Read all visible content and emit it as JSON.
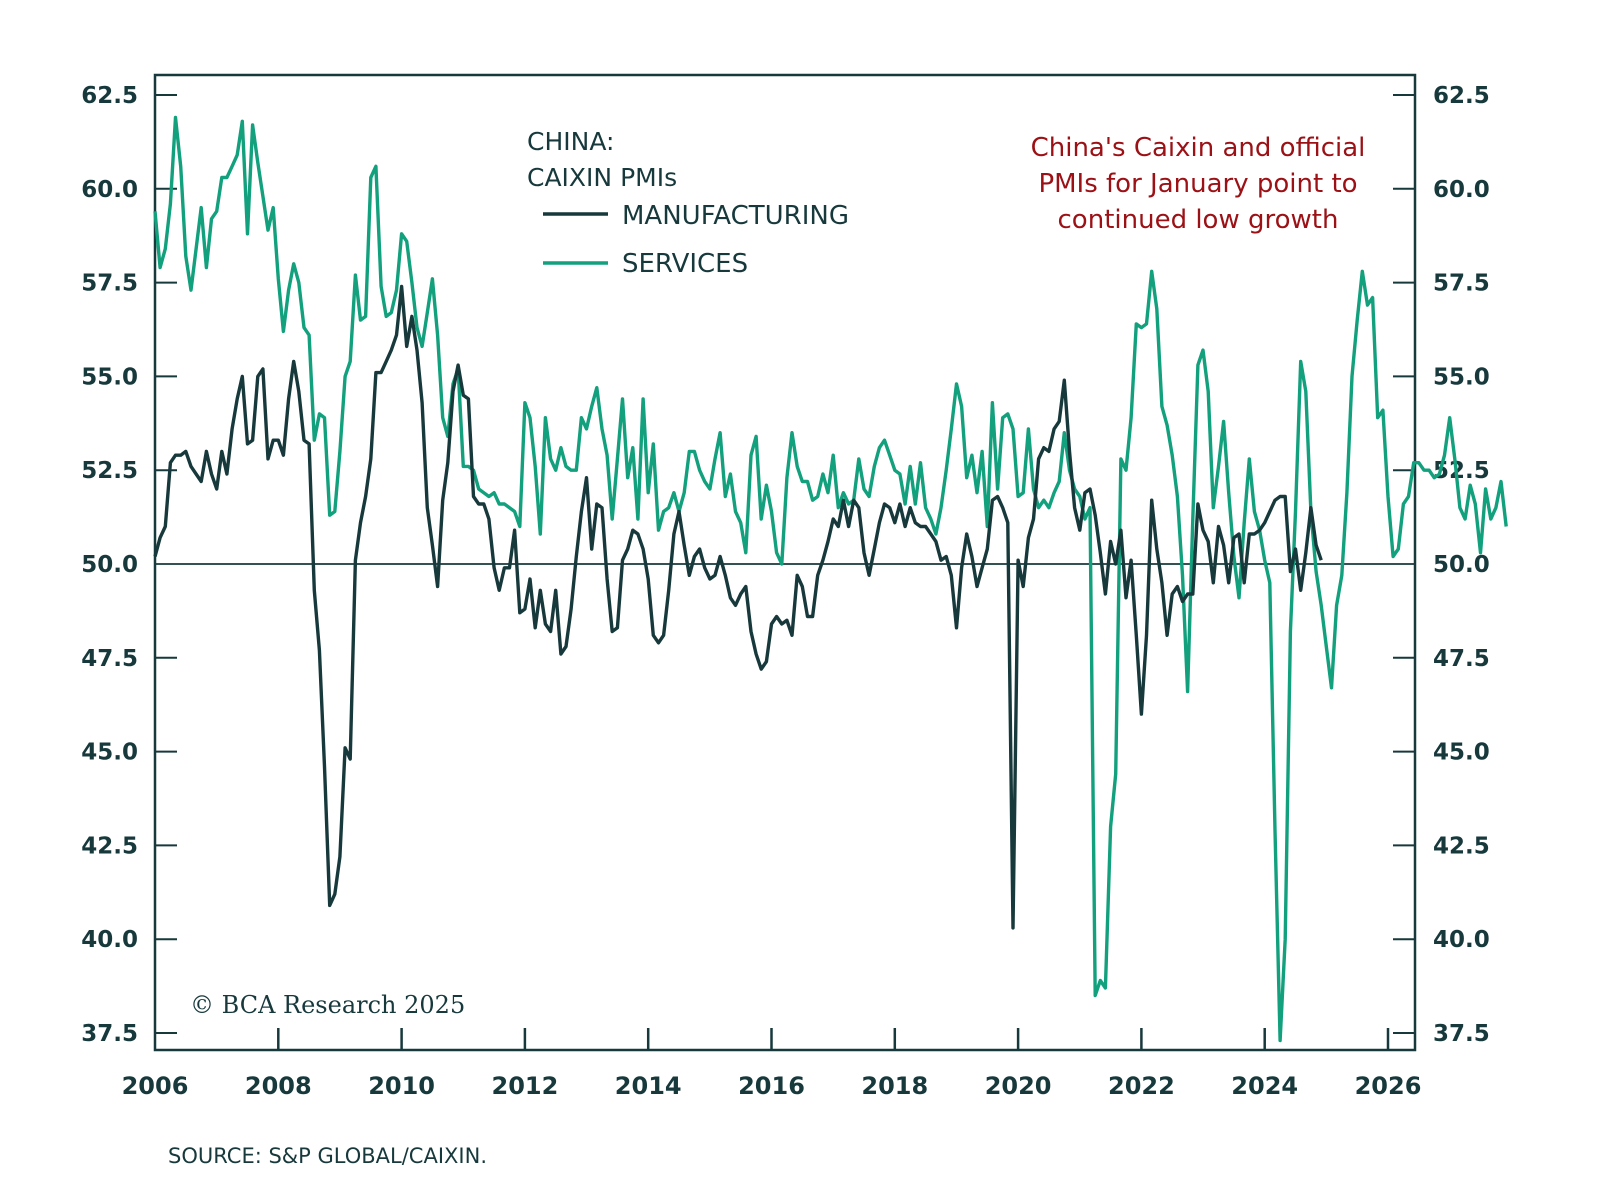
{
  "chart_data": {
    "type": "line",
    "title": "CHINA: CAIXIN PMIs",
    "title_lines": [
      "CHINA:",
      "CAIXIN PMIs"
    ],
    "xlabel": "",
    "ylabel": "",
    "x_start": "2006-01",
    "x_frequency": "monthly",
    "xlim": [
      2006,
      2026
    ],
    "ylim": [
      37.0,
      63.2
    ],
    "x_ticks": [
      2006,
      2008,
      2010,
      2012,
      2014,
      2016,
      2018,
      2020,
      2022,
      2024,
      2026
    ],
    "x_tick_labels": [
      "2006",
      "2008",
      "2010",
      "2012",
      "2014",
      "2016",
      "2018",
      "2020",
      "2022",
      "2024",
      "2026"
    ],
    "y_ticks": [
      37.5,
      40.0,
      42.5,
      45.0,
      47.5,
      50.0,
      52.5,
      55.0,
      57.5,
      60.0,
      62.5
    ],
    "y_tick_labels": [
      "37.5",
      "40.0",
      "42.5",
      "45.0",
      "47.5",
      "50.0",
      "52.5",
      "55.0",
      "57.5",
      "60.0",
      "62.5"
    ],
    "reference_line": 50.0,
    "grid": false,
    "legend_position": "top-center",
    "annotation": [
      "China's Caixin and official",
      "PMIs for January point to",
      "continued low growth"
    ],
    "copyright": "© BCA Research 2025",
    "source": "SOURCE: S&P GLOBAL/CAIXIN.",
    "series": [
      {
        "name": "MANUFACTURING",
        "color": "#17393c",
        "values": [
          50.2,
          50.7,
          51.0,
          52.7,
          52.9,
          52.9,
          53.0,
          52.6,
          52.4,
          52.2,
          53.0,
          52.4,
          52.0,
          53.0,
          52.4,
          53.6,
          54.4,
          55.0,
          53.2,
          53.3,
          55.0,
          55.2,
          52.8,
          53.3,
          53.3,
          52.9,
          54.4,
          55.4,
          54.6,
          53.3,
          53.2,
          49.3,
          47.7,
          44.6,
          40.9,
          41.2,
          42.2,
          45.1,
          44.8,
          50.1,
          51.1,
          51.8,
          52.8,
          55.1,
          55.1,
          55.4,
          55.7,
          56.1,
          57.4,
          55.8,
          56.6,
          55.7,
          54.3,
          51.5,
          50.5,
          49.4,
          51.7,
          52.7,
          54.6,
          55.3,
          54.5,
          54.4,
          51.8,
          51.6,
          51.6,
          51.2,
          49.9,
          49.3,
          49.9,
          49.9,
          50.9,
          48.7,
          48.8,
          49.6,
          48.3,
          49.3,
          48.4,
          48.2,
          49.3,
          47.6,
          47.8,
          48.8,
          50.2,
          51.4,
          52.3,
          50.4,
          51.6,
          51.5,
          49.6,
          48.2,
          48.3,
          50.1,
          50.4,
          50.9,
          50.8,
          50.4,
          49.6,
          48.1,
          47.9,
          48.1,
          49.3,
          50.8,
          51.4,
          50.5,
          49.7,
          50.2,
          50.4,
          49.9,
          49.6,
          49.7,
          50.2,
          49.7,
          49.1,
          48.9,
          49.2,
          49.4,
          48.2,
          47.6,
          47.2,
          47.4,
          48.4,
          48.6,
          48.4,
          48.5,
          48.1,
          49.7,
          49.4,
          48.6,
          48.6,
          49.7,
          50.1,
          50.6,
          51.2,
          51.0,
          51.7,
          51.0,
          51.7,
          51.5,
          50.3,
          49.7,
          50.4,
          51.1,
          51.6,
          51.5,
          51.1,
          51.6,
          51.0,
          51.5,
          51.1,
          51.0,
          51.0,
          50.8,
          50.6,
          50.1,
          50.2,
          49.7,
          48.3,
          49.9,
          50.8,
          50.2,
          49.4,
          49.9,
          50.4,
          51.7,
          51.8,
          51.5,
          51.1,
          40.3,
          50.1,
          49.4,
          50.7,
          51.2,
          52.8,
          53.1,
          53.0,
          53.6,
          53.8,
          54.9,
          53.0,
          51.5,
          50.9,
          51.9,
          52.0,
          51.3,
          50.3,
          49.2,
          50.6,
          50.0,
          50.9,
          49.1,
          50.1,
          48.1,
          46.0,
          48.1,
          51.7,
          50.4,
          49.5,
          48.1,
          49.2,
          49.4,
          49.0,
          49.2,
          49.2,
          51.6,
          50.9,
          50.6,
          49.5,
          51.0,
          50.5,
          49.5,
          50.7,
          50.8,
          49.5,
          50.8,
          50.8,
          50.9,
          51.1,
          51.4,
          51.7,
          51.8,
          51.8,
          49.8,
          50.4,
          49.3,
          50.3,
          51.5,
          50.5,
          50.1
        ]
      },
      {
        "name": "SERVICES",
        "color": "#12a07d",
        "values": [
          59.4,
          57.9,
          58.4,
          59.6,
          61.9,
          60.6,
          58.2,
          57.3,
          58.4,
          59.5,
          57.9,
          59.2,
          59.4,
          60.3,
          60.3,
          60.6,
          60.9,
          61.8,
          58.8,
          61.7,
          60.7,
          59.8,
          58.9,
          59.5,
          57.6,
          56.2,
          57.3,
          58.0,
          57.5,
          56.3,
          56.1,
          53.3,
          54.0,
          53.9,
          51.3,
          51.4,
          53.0,
          55.0,
          55.4,
          57.7,
          56.5,
          56.6,
          60.3,
          60.6,
          57.4,
          56.6,
          56.7,
          57.3,
          58.8,
          58.6,
          57.5,
          56.3,
          55.8,
          56.7,
          57.6,
          56.1,
          53.9,
          53.4,
          54.8,
          55.2,
          52.6,
          52.6,
          52.5,
          52.0,
          51.9,
          51.8,
          51.9,
          51.6,
          51.6,
          51.5,
          51.4,
          51.0,
          54.3,
          53.9,
          52.6,
          50.8,
          53.9,
          52.8,
          52.5,
          53.1,
          52.6,
          52.5,
          52.5,
          53.9,
          53.6,
          54.2,
          54.7,
          53.6,
          52.9,
          51.2,
          52.8,
          54.4,
          52.3,
          53.1,
          51.2,
          54.4,
          51.9,
          53.2,
          50.9,
          51.4,
          51.5,
          51.9,
          51.4,
          51.9,
          53.0,
          53.0,
          52.5,
          52.2,
          52.0,
          52.8,
          53.5,
          51.8,
          52.4,
          51.4,
          51.1,
          50.3,
          52.9,
          53.4,
          51.2,
          52.1,
          51.4,
          50.3,
          50.0,
          52.3,
          53.5,
          52.6,
          52.2,
          52.2,
          51.7,
          51.8,
          52.4,
          51.9,
          52.9,
          51.5,
          51.9,
          51.6,
          51.7,
          52.8,
          52.0,
          51.8,
          52.6,
          53.1,
          53.3,
          52.9,
          52.5,
          52.4,
          51.6,
          52.6,
          51.6,
          52.7,
          51.5,
          51.2,
          50.8,
          51.5,
          52.5,
          53.6,
          54.8,
          54.2,
          52.3,
          52.9,
          51.9,
          53.0,
          51.0,
          54.3,
          52.0,
          53.9,
          54.0,
          53.6,
          51.8,
          51.9,
          53.6,
          52.0,
          51.5,
          51.7,
          51.5,
          51.9,
          52.2,
          53.5,
          52.5,
          52.0,
          51.8,
          51.2,
          51.5,
          38.5,
          38.9,
          38.7,
          43.0,
          44.4,
          52.8,
          52.5,
          53.9,
          56.4,
          56.3,
          56.4,
          57.8,
          56.8,
          54.2,
          53.7,
          52.9,
          51.8,
          49.7,
          46.6,
          51.2,
          55.3,
          55.7,
          54.6,
          51.5,
          52.6,
          53.8,
          51.9,
          50.2,
          49.1,
          51.1,
          52.8,
          51.4,
          50.9,
          50.1,
          49.5,
          42.9,
          37.3,
          40.0,
          48.2,
          51.4,
          55.4,
          54.6,
          51.4,
          49.8,
          48.9,
          47.8,
          46.7,
          48.9,
          49.7,
          51.9,
          55.0,
          56.5,
          57.8,
          56.9,
          57.1,
          53.9,
          54.1,
          51.8,
          50.2,
          50.4,
          51.6,
          51.8,
          52.7,
          52.7,
          52.5,
          52.5,
          52.3,
          52.4,
          52.9,
          53.9,
          52.8,
          51.5,
          51.2,
          52.1,
          51.6,
          50.3,
          52.0,
          51.2,
          51.5,
          52.2,
          51.0
        ]
      }
    ]
  }
}
